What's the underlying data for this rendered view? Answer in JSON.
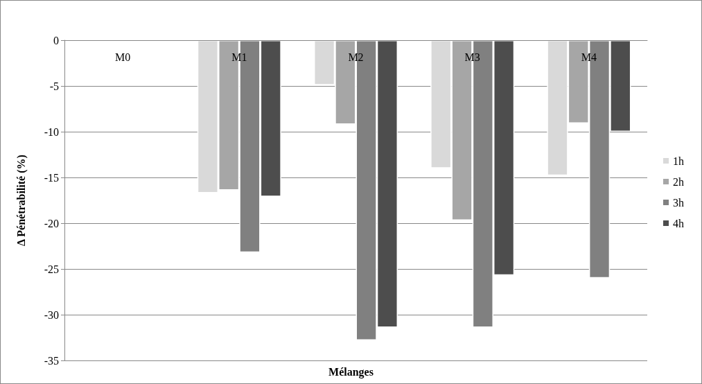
{
  "chart_data": {
    "type": "bar",
    "xlabel": "Mélanges",
    "ylabel": "Δ Pénétrabilité (%)",
    "categories": [
      "M0",
      "M1",
      "M2",
      "M3",
      "M4"
    ],
    "series": [
      {
        "name": "1h",
        "color": "#d9d9d9",
        "values": [
          null,
          -16.7,
          -4.9,
          -14.0,
          -14.8
        ]
      },
      {
        "name": "2h",
        "color": "#a6a6a6",
        "values": [
          null,
          -16.4,
          -9.2,
          -19.7,
          -9.1
        ]
      },
      {
        "name": "3h",
        "color": "#808080",
        "values": [
          null,
          -23.2,
          -32.8,
          -31.4,
          -26.0
        ]
      },
      {
        "name": "4h",
        "color": "#4d4d4d",
        "values": [
          null,
          -17.1,
          -31.4,
          -25.7,
          -10.0
        ]
      }
    ],
    "ylim": [
      -35,
      0
    ],
    "yticks": [
      -35,
      -30,
      -25,
      -20,
      -15,
      -10,
      -5,
      0
    ],
    "grid": "y",
    "legend": "right"
  }
}
